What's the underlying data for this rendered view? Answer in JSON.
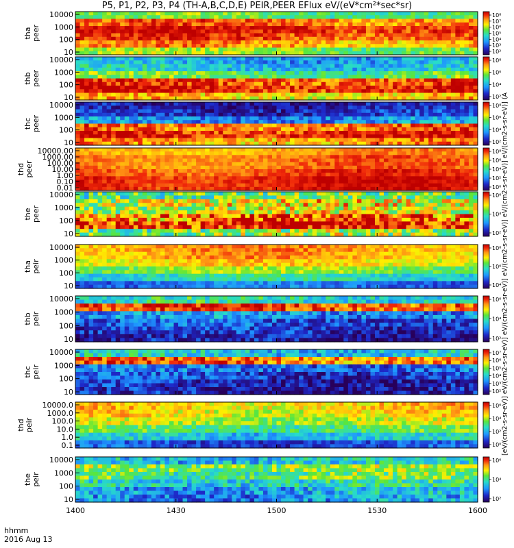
{
  "title": "P5, P1, P2, P3, P4 (TH-A,B,C,D,E) PEIR,PEER EFlux eV/(eV*cm²*sec*sr)",
  "x_legend": {
    "line1": "hhmm",
    "line2": "2016 Aug 13"
  },
  "colorbar_title": "[eV/(cm2-s-sr-eV)] eV/(cm2-s-sr-eV)] eV/(cm2-s-sr-eV)] eV/(cm2-s-sr-eV)] eV/(cm2-s-sr-eV)] eV/(cm2-s-sr-eV)] (A",
  "colors": {
    "high": "#e80000",
    "mid": "#ffe600",
    "low": "#1e90ff",
    "floor": "#1a1aa0"
  },
  "chart_data": {
    "type": "heatmap",
    "x_axis": {
      "label": "hhmm",
      "ticks": [
        "1400",
        "1430",
        "1500",
        "1530",
        "1600"
      ],
      "range_minutes": [
        0,
        120
      ]
    },
    "panels": [
      {
        "probe": "tha",
        "species": "peer",
        "ylabel": "tha\npeer",
        "yticks": [
          "10000",
          "1000",
          "100",
          "10"
        ],
        "cbar_ticks": [
          "10⁸",
          "10⁷",
          "10⁶",
          "10⁵",
          "10⁴",
          "10³",
          "10²"
        ],
        "profile": [
          0.55,
          0.85,
          0.95,
          0.9,
          0.8,
          0.6
        ],
        "noise": 0.1
      },
      {
        "probe": "thb",
        "species": "peer",
        "ylabel": "thb\npeer",
        "yticks": [
          "10000",
          "1000",
          "100",
          "10"
        ],
        "cbar_ticks": [
          "10⁸",
          "10⁶",
          "10⁴",
          "10²"
        ],
        "profile": [
          0.35,
          0.4,
          0.55,
          0.9,
          0.95,
          0.75
        ],
        "noise": 0.12
      },
      {
        "probe": "thc",
        "species": "peer",
        "ylabel": "thc\npeer",
        "yticks": [
          "10000",
          "1000",
          "100",
          "10"
        ],
        "cbar_ticks": [
          "10⁸",
          "10⁶",
          "10⁴",
          "10²"
        ],
        "profile": [
          0.1,
          0.15,
          0.3,
          0.85,
          0.95,
          0.8
        ],
        "noise": 0.12
      },
      {
        "probe": "thd",
        "species": "peer",
        "ylabel": "thd\npeer",
        "yticks": [
          "10000.00",
          "1000.00",
          "100.00",
          "10.00",
          "1.00",
          "0.10",
          "0.01"
        ],
        "cbar_ticks": [
          "10⁸",
          "10⁶",
          "10⁴",
          "10²",
          "10⁰"
        ],
        "profile": [
          0.8,
          0.85,
          0.85,
          0.9,
          0.95,
          0.95
        ],
        "noise": 0.06
      },
      {
        "probe": "the",
        "species": "peer",
        "ylabel": "the\npeer",
        "yticks": [
          "10000",
          "1000",
          "100",
          "10"
        ],
        "cbar_ticks": [
          "10⁶",
          "10⁴",
          "10²"
        ],
        "profile": [
          0.55,
          0.7,
          0.65,
          0.85,
          0.95,
          0.6
        ],
        "noise": 0.2
      },
      {
        "probe": "tha",
        "species": "peir",
        "ylabel": "tha\npeir",
        "yticks": [
          "10000",
          "1000",
          "100",
          "10"
        ],
        "cbar_ticks": [
          "10⁸",
          "10⁶",
          "10⁴"
        ],
        "profile": [
          0.8,
          0.78,
          0.72,
          0.6,
          0.45,
          0.25
        ],
        "noise": 0.08
      },
      {
        "probe": "thb",
        "species": "peir",
        "ylabel": "thb\npeir",
        "yticks": [
          "10000",
          "1000",
          "100",
          "10"
        ],
        "cbar_ticks": [
          "10⁶",
          "10⁴",
          "10²"
        ],
        "profile": [
          0.45,
          0.9,
          0.3,
          0.2,
          0.15,
          0.1
        ],
        "noise": 0.14
      },
      {
        "probe": "thc",
        "species": "peir",
        "ylabel": "thc\npeir",
        "yticks": [
          "10000",
          "1000",
          "100",
          "10"
        ],
        "cbar_ticks": [
          "10⁷",
          "10⁶",
          "10⁵",
          "10⁴",
          "10³",
          "10²"
        ],
        "profile": [
          0.4,
          0.85,
          0.25,
          0.18,
          0.12,
          0.1
        ],
        "noise": 0.14
      },
      {
        "probe": "thd",
        "species": "peir",
        "ylabel": "thd\npeir",
        "yticks": [
          "10000.0",
          "1000.0",
          "100.0",
          "10.0",
          "1.0",
          "0.1"
        ],
        "cbar_ticks": [
          "10⁶",
          "10⁴",
          "10²",
          "10⁰"
        ],
        "profile": [
          0.75,
          0.72,
          0.65,
          0.55,
          0.4,
          0.2
        ],
        "noise": 0.1
      },
      {
        "probe": "the",
        "species": "peir",
        "ylabel": "the\npeir",
        "yticks": [
          "10000",
          "1000",
          "100",
          "10"
        ],
        "cbar_ticks": [
          "10⁶",
          "10⁴",
          "10²"
        ],
        "profile": [
          0.4,
          0.6,
          0.55,
          0.45,
          0.35,
          0.3
        ],
        "noise": 0.15
      }
    ]
  }
}
